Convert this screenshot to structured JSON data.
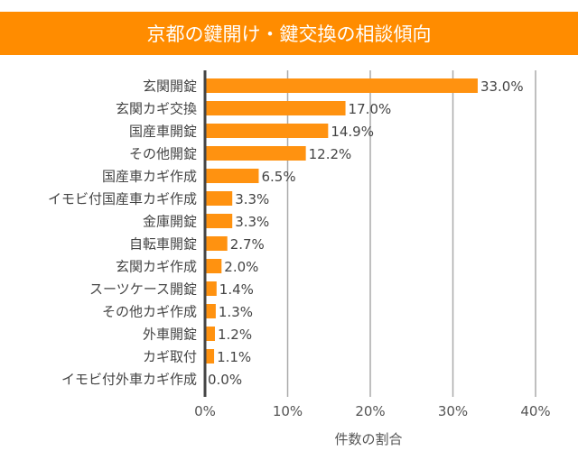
{
  "chart_data": {
    "type": "bar",
    "orientation": "horizontal",
    "title": "京都の鍵開け・鍵交換の相談傾向",
    "xlabel": "件数の割合",
    "ylabel": "",
    "xlim": [
      0,
      40
    ],
    "xticks": [
      "0%",
      "10%",
      "20%",
      "30%",
      "40%"
    ],
    "grid": "vertical",
    "bar_color": "#FF9210",
    "title_bg": "#FF8C00",
    "categories": [
      "玄関開錠",
      "玄関カギ交換",
      "国産車開錠",
      "その他開錠",
      "国産車カギ作成",
      "イモビ付国産車カギ作成",
      "金庫開錠",
      "自転車開錠",
      "玄関カギ作成",
      "スーツケース開錠",
      "その他カギ作成",
      "外車開錠",
      "カギ取付",
      "イモビ付外車カギ作成"
    ],
    "values": [
      33.0,
      17.0,
      14.9,
      12.2,
      6.5,
      3.3,
      3.3,
      2.7,
      2.0,
      1.4,
      1.3,
      1.2,
      1.1,
      0.0
    ],
    "data_labels": [
      "33.0%",
      "17.0%",
      "14.9%",
      "12.2%",
      "6.5%",
      "3.3%",
      "3.3%",
      "2.7%",
      "2.0%",
      "1.4%",
      "1.3%",
      "1.2%",
      "1.1%",
      "0.0%"
    ]
  }
}
